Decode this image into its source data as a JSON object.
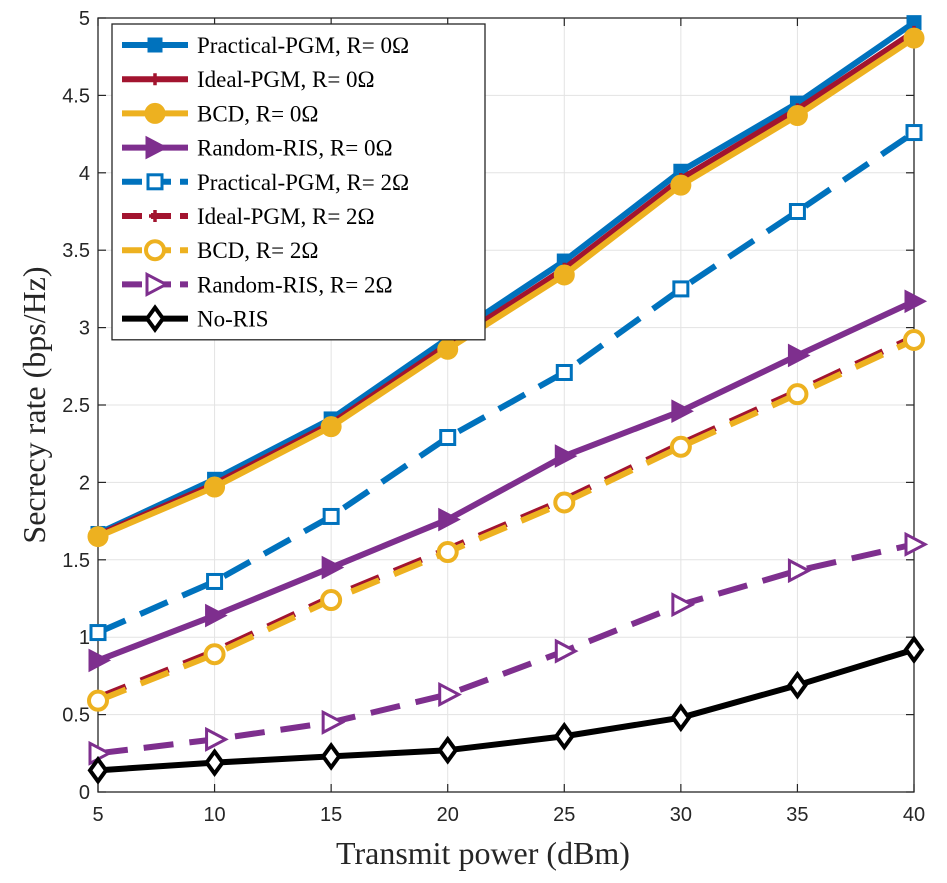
{
  "chart_data": {
    "type": "line",
    "title": "",
    "xlabel": "Transmit power (dBm)",
    "ylabel": "Secrecy rate (bps/Hz)",
    "x": [
      5,
      10,
      15,
      20,
      25,
      30,
      35,
      40
    ],
    "xlim": [
      5,
      40
    ],
    "ylim": [
      0,
      5
    ],
    "xticks": [
      "5",
      "10",
      "15",
      "20",
      "25",
      "30",
      "35",
      "40"
    ],
    "yticks": [
      "0",
      "0.5",
      "1",
      "1.5",
      "2",
      "2.5",
      "3",
      "3.5",
      "4",
      "4.5",
      "5"
    ],
    "grid": true,
    "legend_position": "top-left",
    "series": [
      {
        "name": "Practical-PGM, R= 0Ω",
        "color": "#0072BD",
        "dash": "solid",
        "marker": "square",
        "values": [
          1.67,
          2.02,
          2.41,
          2.93,
          3.43,
          4.01,
          4.45,
          4.97
        ]
      },
      {
        "name": "Ideal-PGM, R= 0Ω",
        "color": "#A2142F",
        "dash": "solid",
        "marker": "plus",
        "values": [
          1.66,
          1.99,
          2.38,
          2.89,
          3.38,
          3.96,
          4.41,
          4.91
        ]
      },
      {
        "name": "BCD, R= 0Ω",
        "color": "#EDB120",
        "dash": "solid",
        "marker": "circle",
        "values": [
          1.65,
          1.97,
          2.36,
          2.86,
          3.34,
          3.92,
          4.37,
          4.87
        ]
      },
      {
        "name": "Random-RIS, R= 0Ω",
        "color": "#7E2F8E",
        "dash": "solid",
        "marker": "triangle-right",
        "values": [
          0.85,
          1.14,
          1.45,
          1.76,
          2.17,
          2.46,
          2.82,
          3.17
        ]
      },
      {
        "name": "Practical-PGM, R= 2Ω",
        "color": "#0072BD",
        "dash": "dashed",
        "marker": "square-open",
        "values": [
          1.03,
          1.36,
          1.78,
          2.29,
          2.71,
          3.25,
          3.75,
          4.26
        ]
      },
      {
        "name": "Ideal-PGM, R= 2Ω",
        "color": "#A2142F",
        "dash": "dashed",
        "marker": "plus",
        "values": [
          0.61,
          0.91,
          1.26,
          1.57,
          1.89,
          2.25,
          2.59,
          2.94
        ]
      },
      {
        "name": "BCD, R= 2Ω",
        "color": "#EDB120",
        "dash": "dashed",
        "marker": "circle-open",
        "values": [
          0.59,
          0.89,
          1.24,
          1.55,
          1.87,
          2.23,
          2.57,
          2.92
        ]
      },
      {
        "name": "Random-RIS, R= 2Ω",
        "color": "#7E2F8E",
        "dash": "dashed",
        "marker": "triangle-right-open",
        "values": [
          0.25,
          0.34,
          0.45,
          0.63,
          0.91,
          1.21,
          1.43,
          1.6
        ]
      },
      {
        "name": "No-RIS",
        "color": "#000000",
        "dash": "solid",
        "marker": "diamond-open",
        "values": [
          0.14,
          0.19,
          0.23,
          0.27,
          0.36,
          0.48,
          0.69,
          0.92
        ]
      }
    ]
  }
}
